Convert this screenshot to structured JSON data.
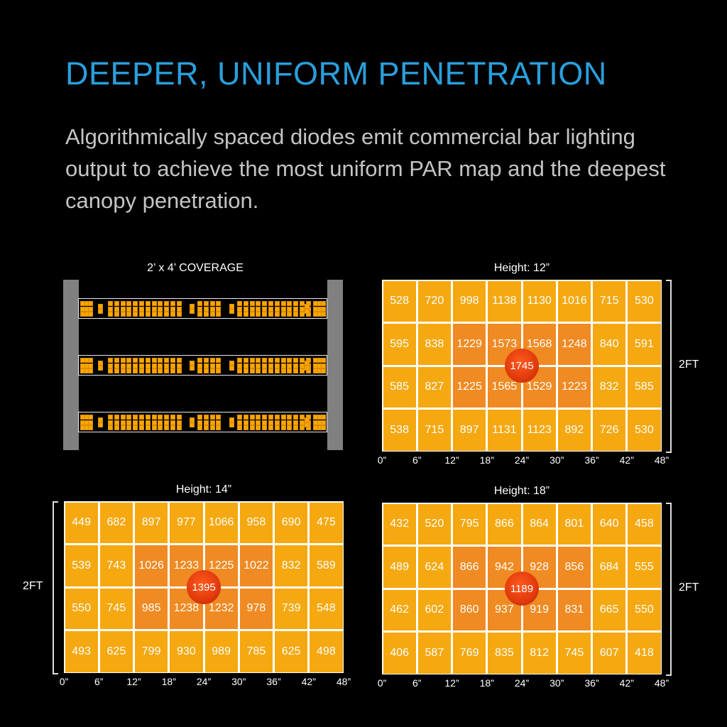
{
  "header": {
    "title": "DEEPER, UNIFORM PENETRATION",
    "subtitle": "Algorithmically spaced diodes emit commercial bar lighting output to achieve the most uniform PAR map and the deepest canopy penetration."
  },
  "coverage": {
    "label": "2’ x 4’ COVERAGE",
    "bar_count": 3
  },
  "colors": {
    "title": "#2a9fdc",
    "cell": "#f5a80f",
    "cell_center": "#f08a22",
    "peak": "#e13a0c",
    "post": "#808080"
  },
  "chart_data": [
    {
      "type": "heatmap",
      "title": "Height: 12”",
      "x_ticks": [
        "0”",
        "6”",
        "12”",
        "18”",
        "24”",
        "30”",
        "36”",
        "42”",
        "48”"
      ],
      "side_label": "2FT",
      "values": [
        [
          528,
          720,
          998,
          1138,
          1130,
          1016,
          715,
          530
        ],
        [
          595,
          838,
          1229,
          1573,
          1568,
          1248,
          840,
          591
        ],
        [
          585,
          827,
          1225,
          1565,
          1529,
          1223,
          832,
          585
        ],
        [
          538,
          715,
          897,
          1131,
          1123,
          892,
          726,
          530
        ]
      ],
      "peak": "1745"
    },
    {
      "type": "heatmap",
      "title": "Height: 14”",
      "x_ticks": [
        "0”",
        "6”",
        "12”",
        "18”",
        "24”",
        "30”",
        "36”",
        "42”",
        "48”"
      ],
      "side_label": "2FT",
      "values": [
        [
          449,
          682,
          897,
          977,
          1066,
          958,
          690,
          475
        ],
        [
          539,
          743,
          1026,
          1233,
          1225,
          1022,
          832,
          589
        ],
        [
          550,
          745,
          985,
          1238,
          1232,
          978,
          739,
          548
        ],
        [
          493,
          625,
          799,
          930,
          989,
          785,
          625,
          498
        ]
      ],
      "peak": "1395"
    },
    {
      "type": "heatmap",
      "title": "Height: 18”",
      "x_ticks": [
        "0”",
        "6”",
        "12”",
        "18”",
        "24”",
        "30”",
        "36”",
        "42”",
        "48”"
      ],
      "side_label": "2FT",
      "values": [
        [
          432,
          520,
          795,
          866,
          864,
          801,
          640,
          458
        ],
        [
          489,
          624,
          866,
          942,
          928,
          856,
          684,
          555
        ],
        [
          462,
          602,
          860,
          937,
          919,
          831,
          665,
          550
        ],
        [
          406,
          587,
          769,
          835,
          812,
          745,
          607,
          418
        ]
      ],
      "peak": "1189"
    }
  ]
}
